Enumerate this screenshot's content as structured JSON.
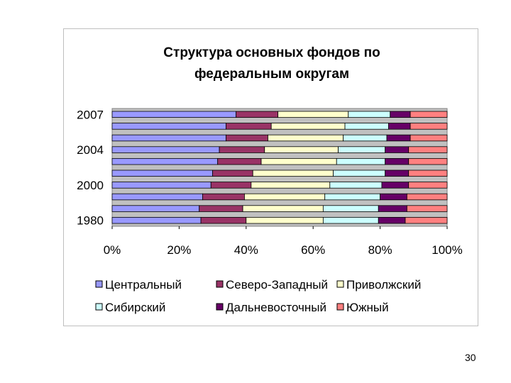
{
  "chart_data": {
    "type": "bar",
    "orientation": "horizontal",
    "stacked": "percent",
    "title": "Структура основных фондов по федеральным округам",
    "title_lines": [
      "Структура основных фондов по",
      "федеральным округам"
    ],
    "x_ticks": [
      "0%",
      "20%",
      "40%",
      "60%",
      "80%",
      "100%"
    ],
    "xlim": [
      0,
      100
    ],
    "y_tick_labels": [
      "2007",
      "2004",
      "2000",
      "1980"
    ],
    "plot_background": "#c0c0c0",
    "legend_position": "bottom",
    "categories": [
      "2007",
      "",
      "",
      "2004",
      "",
      "",
      "2000",
      "",
      "",
      "1980"
    ],
    "series": [
      {
        "name": "Центральный",
        "color": "#9999ff",
        "values": [
          37,
          34,
          34,
          32,
          31.5,
          30,
          29.5,
          27,
          26,
          26.5
        ]
      },
      {
        "name": "Северо-Западный",
        "color": "#993366",
        "values": [
          12.5,
          13.5,
          12.5,
          13.5,
          13,
          12,
          12,
          12.5,
          13,
          13.5
        ]
      },
      {
        "name": "Приволжский",
        "color": "#ffffcc",
        "values": [
          21,
          22,
          22.5,
          22,
          22.5,
          24,
          23.5,
          24,
          24,
          23
        ]
      },
      {
        "name": "Сибирский",
        "color": "#ccffff",
        "values": [
          12.5,
          13,
          13,
          14,
          14.5,
          15.5,
          15.5,
          16.5,
          16.5,
          16.5
        ]
      },
      {
        "name": "Дальневосточный",
        "color": "#660066",
        "values": [
          6,
          6.5,
          7,
          7,
          7,
          7,
          8,
          8,
          8.5,
          8
        ]
      },
      {
        "name": "Южный",
        "color": "#ff8080",
        "values": [
          11,
          11,
          11,
          11.5,
          11.5,
          11.5,
          11.5,
          12,
          12,
          12.5
        ]
      }
    ]
  },
  "slide_number": "30"
}
